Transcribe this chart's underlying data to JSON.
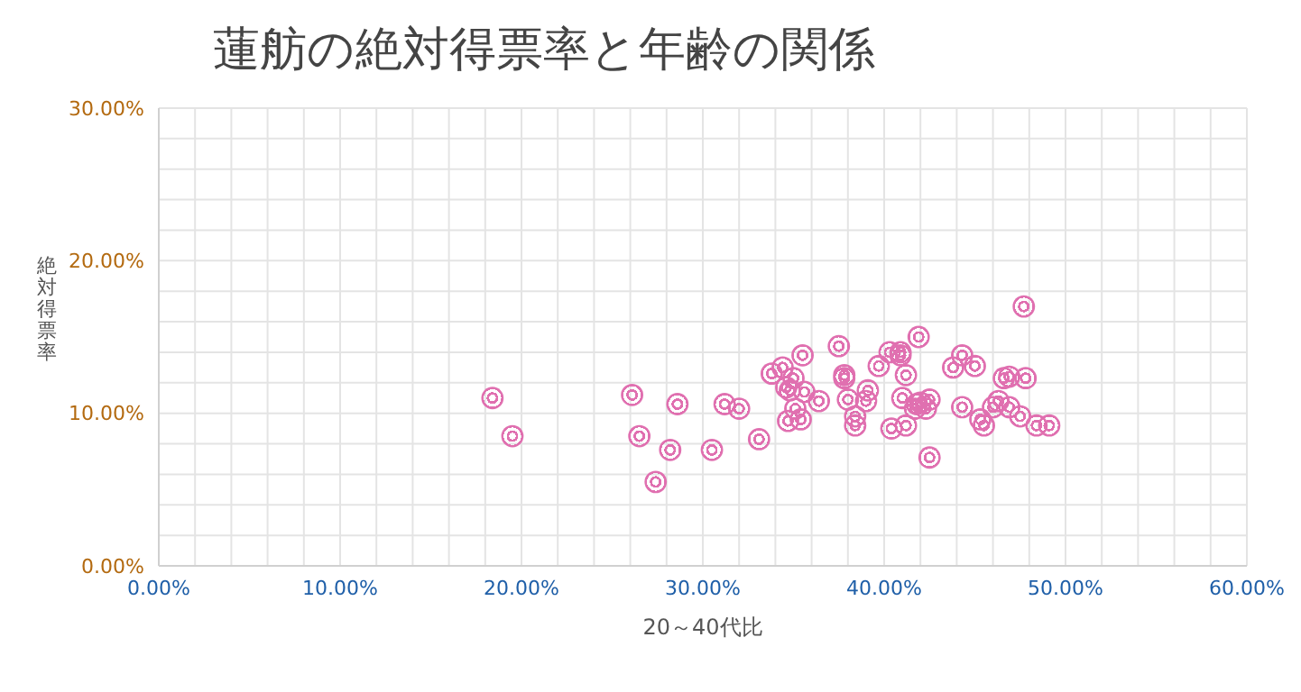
{
  "chart_data": {
    "type": "scatter",
    "title": "蓮舫の絶対得票率と年齢の関係",
    "xlabel": "20～40代比",
    "ylabel": "絶対得票率",
    "xlim": [
      0,
      60
    ],
    "ylim": [
      0,
      30
    ],
    "xticks": [
      {
        "value": 0,
        "label": "0.00%"
      },
      {
        "value": 2,
        "label": null
      },
      {
        "value": 4,
        "label": null
      },
      {
        "value": 6,
        "label": null
      },
      {
        "value": 8,
        "label": null
      },
      {
        "value": 10,
        "label": "10.00%"
      },
      {
        "value": 12,
        "label": null
      },
      {
        "value": 14,
        "label": null
      },
      {
        "value": 16,
        "label": null
      },
      {
        "value": 18,
        "label": null
      },
      {
        "value": 20,
        "label": "20.00%"
      },
      {
        "value": 22,
        "label": null
      },
      {
        "value": 24,
        "label": null
      },
      {
        "value": 26,
        "label": null
      },
      {
        "value": 28,
        "label": null
      },
      {
        "value": 30,
        "label": "30.00%"
      },
      {
        "value": 32,
        "label": null
      },
      {
        "value": 34,
        "label": null
      },
      {
        "value": 36,
        "label": null
      },
      {
        "value": 38,
        "label": null
      },
      {
        "value": 40,
        "label": "40.00%"
      },
      {
        "value": 42,
        "label": null
      },
      {
        "value": 44,
        "label": null
      },
      {
        "value": 46,
        "label": null
      },
      {
        "value": 48,
        "label": null
      },
      {
        "value": 50,
        "label": "50.00%"
      },
      {
        "value": 52,
        "label": null
      },
      {
        "value": 54,
        "label": null
      },
      {
        "value": 56,
        "label": null
      },
      {
        "value": 58,
        "label": null
      },
      {
        "value": 60,
        "label": "60.00%"
      }
    ],
    "yticks": [
      {
        "value": 0,
        "label": "0.00%"
      },
      {
        "value": 2,
        "label": null
      },
      {
        "value": 4,
        "label": null
      },
      {
        "value": 6,
        "label": null
      },
      {
        "value": 8,
        "label": null
      },
      {
        "value": 10,
        "label": "10.00%"
      },
      {
        "value": 12,
        "label": null
      },
      {
        "value": 14,
        "label": null
      },
      {
        "value": 16,
        "label": null
      },
      {
        "value": 18,
        "label": null
      },
      {
        "value": 20,
        "label": "20.00%"
      },
      {
        "value": 22,
        "label": null
      },
      {
        "value": 24,
        "label": null
      },
      {
        "value": 26,
        "label": null
      },
      {
        "value": 28,
        "label": null
      },
      {
        "value": 30,
        "label": "30.00%"
      }
    ],
    "grid": true,
    "marker": "circle",
    "legend": false,
    "series": [
      {
        "color": "#e070b0",
        "x": [
          18.4,
          19.5,
          26.1,
          26.5,
          27.4,
          28.2,
          28.6,
          30.5,
          31.2,
          32.0,
          33.1,
          33.8,
          34.4,
          34.6,
          34.8,
          35.0,
          34.7,
          35.1,
          35.4,
          35.5,
          35.6,
          36.4,
          37.5,
          37.8,
          37.8,
          38.0,
          38.4,
          38.4,
          39.1,
          39.0,
          39.7,
          40.3,
          40.4,
          40.9,
          40.9,
          41.0,
          41.2,
          41.2,
          41.8,
          41.9,
          41.7,
          42.0,
          42.3,
          42.5,
          42.5,
          43.8,
          44.3,
          44.3,
          45.0,
          45.3,
          45.5,
          46.0,
          46.3,
          46.6,
          46.9,
          46.9,
          47.5,
          47.7,
          47.8,
          48.4,
          49.1
        ],
        "values": [
          11.0,
          8.5,
          11.2,
          8.5,
          5.5,
          7.6,
          10.6,
          7.6,
          10.6,
          10.3,
          8.3,
          12.6,
          13.0,
          11.7,
          11.5,
          12.3,
          9.5,
          10.3,
          9.6,
          13.8,
          11.4,
          10.8,
          14.4,
          12.5,
          12.3,
          10.9,
          9.8,
          9.2,
          11.5,
          10.8,
          13.1,
          14.0,
          9.0,
          14.0,
          13.8,
          11.0,
          12.5,
          9.2,
          10.6,
          15.0,
          10.3,
          10.7,
          10.3,
          10.9,
          7.1,
          13.0,
          13.8,
          10.4,
          13.1,
          9.6,
          9.2,
          10.4,
          10.8,
          12.3,
          12.4,
          10.4,
          9.8,
          17.0,
          12.3,
          9.2,
          9.2
        ]
      }
    ]
  }
}
